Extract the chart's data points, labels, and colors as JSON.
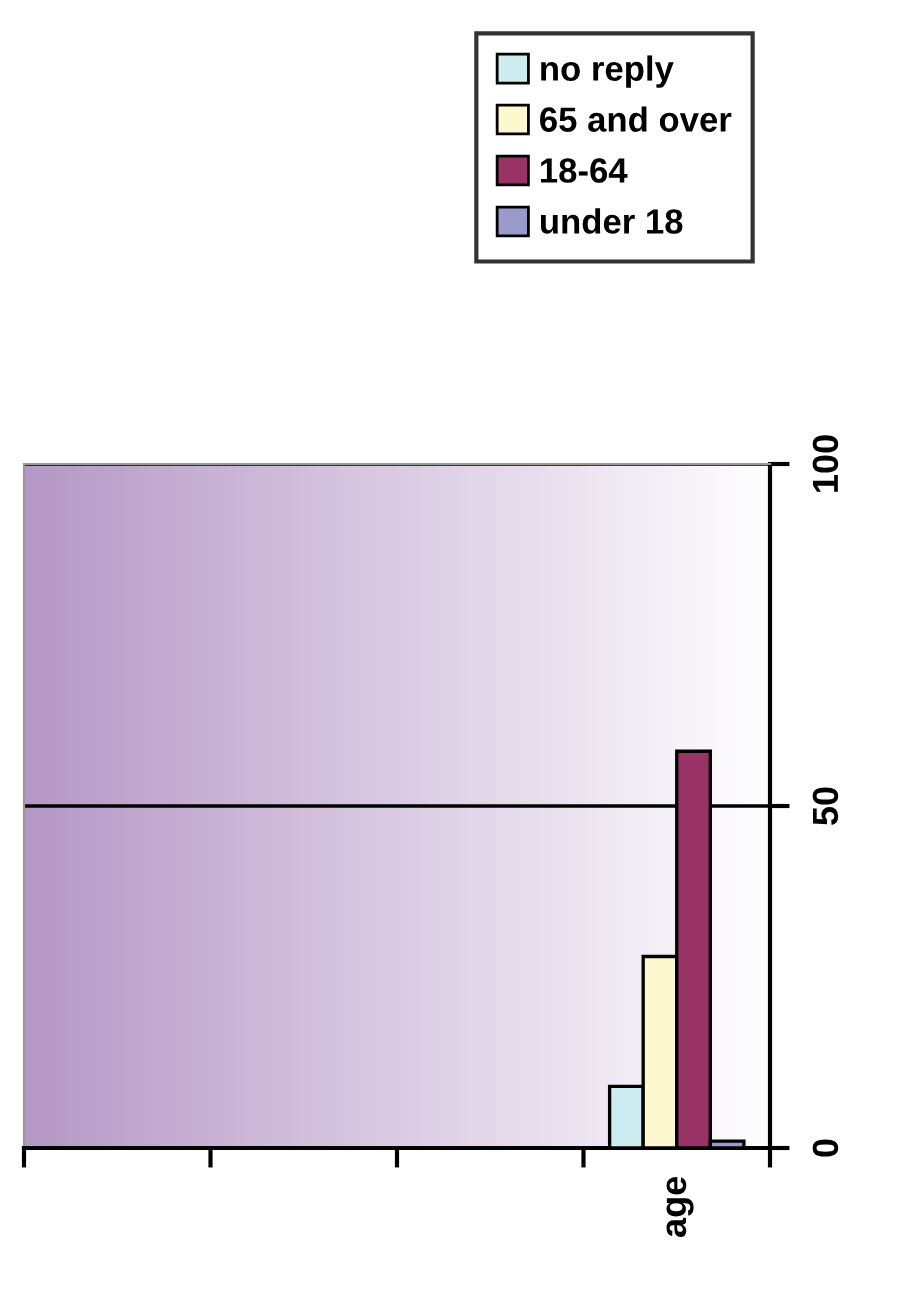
{
  "chart_data": {
    "type": "bar",
    "categories": [
      null,
      null,
      null,
      "age"
    ],
    "series": [
      {
        "name": "no reply",
        "color": "#ccecf0",
        "values": [
          null,
          null,
          null,
          9
        ]
      },
      {
        "name": "65 and over",
        "color": "#fdf9cf",
        "values": [
          null,
          null,
          null,
          28
        ]
      },
      {
        "name": "18-64",
        "color": "#993366",
        "values": [
          null,
          null,
          null,
          58
        ]
      },
      {
        "name": "under 18",
        "color": "#9999cc",
        "values": [
          null,
          null,
          null,
          1
        ]
      }
    ],
    "ylim": [
      0,
      100
    ],
    "yticks": [
      0,
      50,
      100
    ],
    "grid": "y",
    "legend": "top right"
  }
}
